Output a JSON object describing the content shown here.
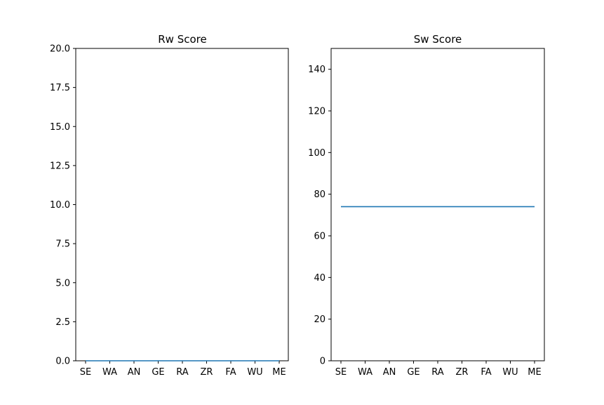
{
  "chart_data": [
    {
      "type": "line",
      "title": "Rw Score",
      "xlabel": "",
      "ylabel": "",
      "categories": [
        "SE",
        "WA",
        "AN",
        "GE",
        "RA",
        "ZR",
        "FA",
        "WU",
        "ME"
      ],
      "series": [
        {
          "values": [
            0,
            0,
            0,
            0,
            0,
            0,
            0,
            0,
            0
          ],
          "color": "#1f77b4"
        }
      ],
      "ylim": [
        0,
        20
      ],
      "yticks": [
        0.0,
        2.5,
        5.0,
        7.5,
        10.0,
        12.5,
        15.0,
        17.5,
        20.0
      ],
      "ytick_labels": [
        "0.0",
        "2.5",
        "5.0",
        "7.5",
        "10.0",
        "12.5",
        "15.0",
        "17.5",
        "20.0"
      ],
      "grid": false
    },
    {
      "type": "line",
      "title": "Sw Score",
      "xlabel": "",
      "ylabel": "",
      "categories": [
        "SE",
        "WA",
        "AN",
        "GE",
        "RA",
        "ZR",
        "FA",
        "WU",
        "ME"
      ],
      "series": [
        {
          "values": [
            74,
            74,
            74,
            74,
            74,
            74,
            74,
            74,
            74
          ],
          "color": "#1f77b4"
        }
      ],
      "ylim": [
        0,
        150
      ],
      "yticks": [
        0,
        20,
        40,
        60,
        80,
        100,
        120,
        140
      ],
      "ytick_labels": [
        "0",
        "20",
        "40",
        "60",
        "80",
        "100",
        "120",
        "140"
      ],
      "grid": false
    }
  ]
}
